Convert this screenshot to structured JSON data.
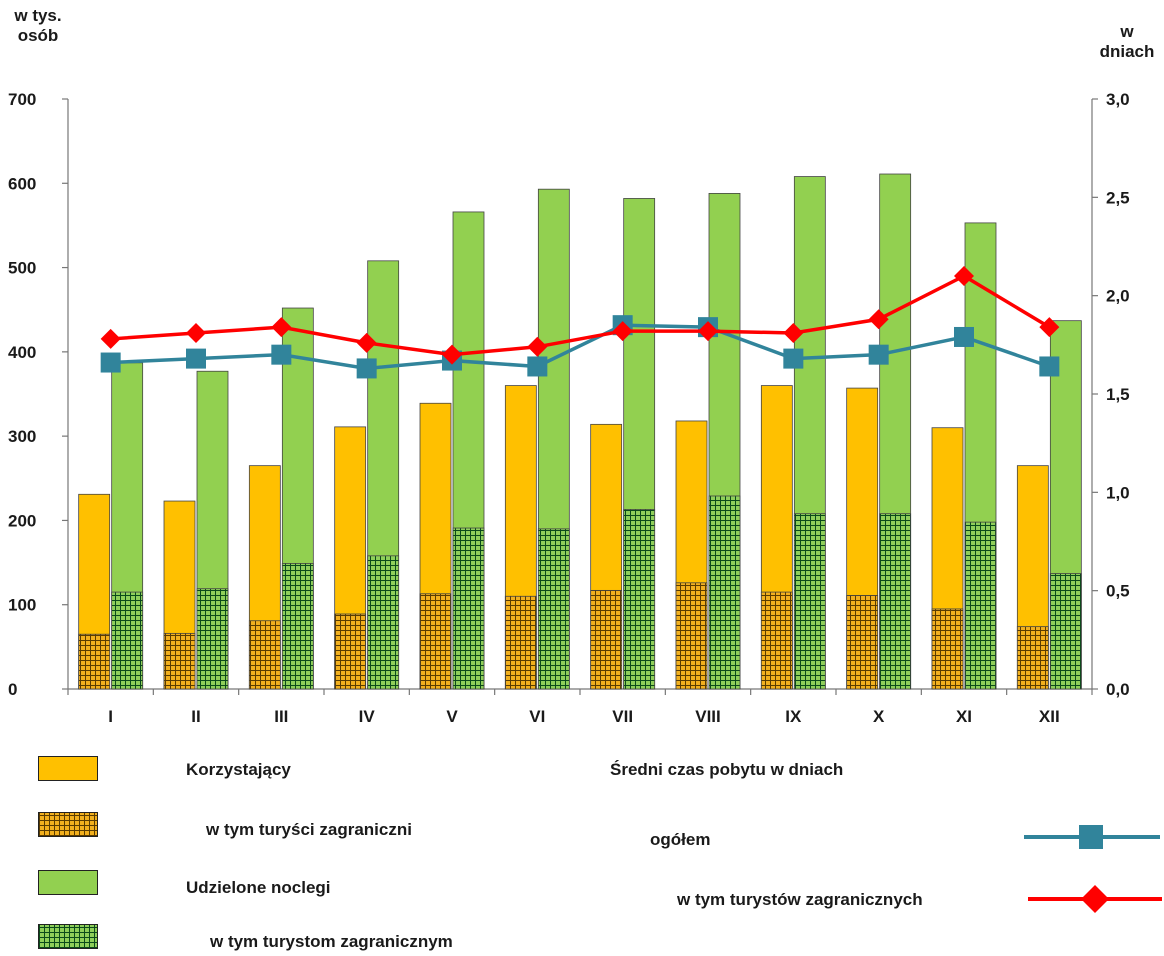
{
  "chart_data": {
    "type": "bar",
    "categories": [
      "I",
      "II",
      "III",
      "IV",
      "V",
      "VI",
      "VII",
      "VIII",
      "IX",
      "X",
      "XI",
      "XII"
    ],
    "left_axis": {
      "title_line1": "w tys.",
      "title_line2": "osób",
      "ylim": [
        0,
        700
      ],
      "ticks": [
        "0",
        "100",
        "200",
        "300",
        "400",
        "500",
        "600",
        "700"
      ]
    },
    "right_axis": {
      "title_line1": "w",
      "title_line2": "dniach",
      "ylim": [
        0,
        3
      ],
      "ticks": [
        "0,0",
        "0,5",
        "1,0",
        "1,5",
        "2,0",
        "2,5",
        "3,0"
      ]
    },
    "series": [
      {
        "name": "Korzystający",
        "axis": "left",
        "kind": "bar",
        "color": "#FFC000",
        "values": [
          231,
          223,
          265,
          311,
          339,
          360,
          314,
          318,
          360,
          357,
          310,
          265
        ]
      },
      {
        "name": "w tym turyści zagraniczni",
        "axis": "left",
        "kind": "bar",
        "color": "#D4A000",
        "values": [
          65,
          66,
          81,
          89,
          113,
          110,
          117,
          126,
          115,
          111,
          95,
          74
        ]
      },
      {
        "name": "Udzielone noclegi",
        "axis": "left",
        "kind": "bar",
        "color": "#92D050",
        "values": [
          387,
          377,
          452,
          508,
          566,
          593,
          582,
          588,
          608,
          611,
          553,
          437
        ]
      },
      {
        "name": "w tym turystom zagranicznym",
        "axis": "left",
        "kind": "bar",
        "color": "#1E8A3C",
        "values": [
          115,
          119,
          149,
          158,
          191,
          190,
          213,
          229,
          208,
          208,
          198,
          137
        ]
      },
      {
        "name": "ogółem",
        "axis": "right",
        "kind": "line",
        "color": "#31849B",
        "values": [
          1.66,
          1.68,
          1.7,
          1.63,
          1.67,
          1.64,
          1.85,
          1.84,
          1.68,
          1.7,
          1.79,
          1.64
        ]
      },
      {
        "name": "w tym turystów zagranicznych",
        "axis": "right",
        "kind": "line",
        "color": "#FF0000",
        "values": [
          1.78,
          1.81,
          1.84,
          1.76,
          1.7,
          1.74,
          1.82,
          1.82,
          1.81,
          1.88,
          2.1,
          1.84
        ]
      }
    ]
  },
  "legend": {
    "korzystajacy": "Korzystający",
    "turysci_zagraniczni": "w tym turyści zagraniczni",
    "udzielone_noclegi": "Udzielone noclegi",
    "turystom_zagranicznym": "w tym turystom zagranicznym",
    "sredni_czas_title": "Średni czas pobytu w dniach",
    "ogolem": "ogółem",
    "turystow_zagranicznych": "w tym turystów zagranicznych"
  }
}
